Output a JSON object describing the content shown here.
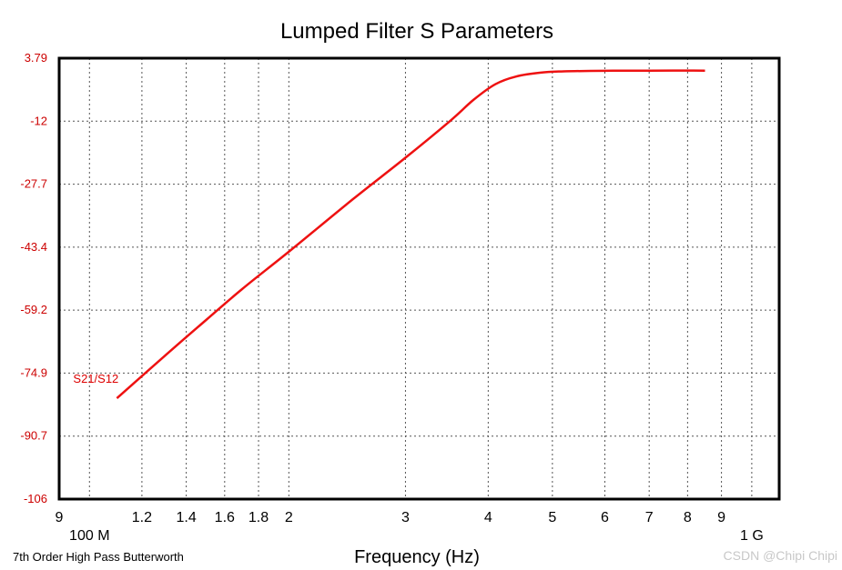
{
  "chart_data": {
    "type": "line",
    "title": "Lumped Filter S Parameters",
    "xlabel": "Frequency (Hz)",
    "xscale": "log",
    "xlim": [
      90000000,
      1100000000
    ],
    "ylim": [
      -106,
      3.79
    ],
    "grid": true,
    "y_ticks": [
      "3.79",
      "-12",
      "-27.7",
      "-43.4",
      "-59.2",
      "-74.9",
      "-90.7",
      "-106"
    ],
    "x_ticks": [
      {
        "value": 90000000,
        "label": "9"
      },
      {
        "value": 100000000,
        "label": "100 M",
        "row": 2
      },
      {
        "value": 120000000,
        "label": "1.2"
      },
      {
        "value": 140000000,
        "label": "1.4"
      },
      {
        "value": 160000000,
        "label": "1.6"
      },
      {
        "value": 180000000,
        "label": "1.8"
      },
      {
        "value": 200000000,
        "label": "2"
      },
      {
        "value": 300000000,
        "label": "3"
      },
      {
        "value": 400000000,
        "label": "4"
      },
      {
        "value": 500000000,
        "label": "5"
      },
      {
        "value": 600000000,
        "label": "6"
      },
      {
        "value": 700000000,
        "label": "7"
      },
      {
        "value": 800000000,
        "label": "8"
      },
      {
        "value": 900000000,
        "label": "9"
      },
      {
        "value": 1000000000,
        "label": "1 G",
        "row": 2
      }
    ],
    "series": [
      {
        "name": "S21/S12",
        "color": "#ee1111",
        "x": [
          110000000,
          130000000,
          150000000,
          170000000,
          200000000,
          250000000,
          300000000,
          350000000,
          380000000,
          410000000,
          440000000,
          480000000,
          520000000,
          600000000,
          700000000,
          850000000
        ],
        "y": [
          -80.9,
          -70.3,
          -61.4,
          -53.7,
          -44.4,
          -31.3,
          -21.0,
          -11.9,
          -6.6,
          -2.7,
          -0.8,
          0.2,
          0.5,
          0.65,
          0.7,
          0.7
        ]
      }
    ]
  },
  "footer": {
    "subtitle": "7th Order High Pass Butterworth",
    "watermark": "CSDN @Chipi Chipi"
  }
}
